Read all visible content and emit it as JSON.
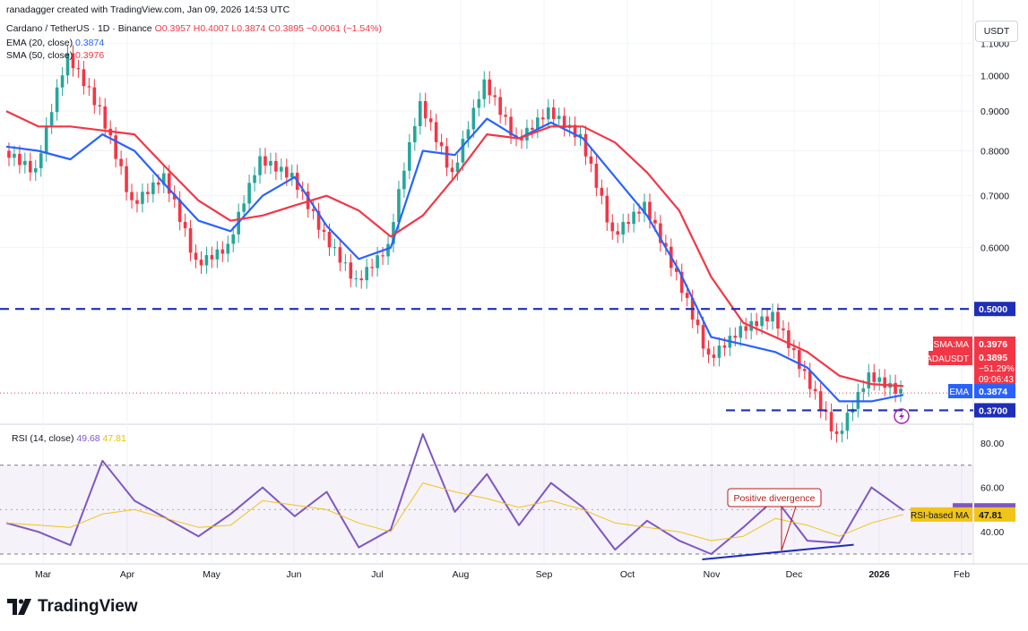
{
  "header": {
    "credit": "ranadagger created with TradingView.com, Jan 09, 2026 14:53 UTC",
    "symbol_line": "Cardano / TetherUS · 1D · Binance",
    "ohlc": "O0.3957 H0.4007 L0.3874 C0.3895 −0.0061 (−1.54%)",
    "ema_label": "EMA (20, close)",
    "ema_value": "0.3874",
    "sma_label": "SMA (50, close)",
    "sma_value": "0.3976"
  },
  "currency": "USDT",
  "rsi_legend": {
    "label": "RSI (14, close)",
    "value": "49.68",
    "ma_value": "47.81"
  },
  "brand": "TradingView",
  "colors": {
    "up": "#26a69a",
    "down": "#f23645",
    "ema": "#2962ff",
    "sma": "#f23645",
    "rsi": "#7e57c2",
    "rsi_ma": "#f0c419",
    "level_line": "#1e2eb8"
  },
  "chart_data": [
    {
      "type": "line",
      "title": "Cardano / TetherUS · 1D · Binance",
      "price_scale": "log",
      "ylim": [
        0.355,
        1.2
      ],
      "y_ticks": [
        1.1,
        1.0,
        0.9,
        0.8,
        0.7,
        0.6
      ],
      "y_tick_labels": [
        "1.1000",
        "1.0000",
        "0.9000",
        "0.8000",
        "0.7000",
        "0.6000"
      ],
      "x_ticks": [
        "Mar",
        "Apr",
        "May",
        "Jun",
        "Jul",
        "Aug",
        "Sep",
        "Oct",
        "Nov",
        "Dec",
        "2026",
        "Feb"
      ],
      "x": [
        "Feb 24",
        "Mar 2",
        "Mar 3",
        "Mar 6",
        "Mar 10",
        "Mar 26",
        "Apr 7",
        "Apr 21",
        "May 12",
        "Jun 1",
        "Jun 12",
        "Jun 22",
        "Jul 10",
        "Jul 20",
        "Aug 1",
        "Aug 14",
        "Sep 1",
        "Sep 20",
        "Oct 6",
        "Oct 10",
        "Oct 25",
        "Nov 4",
        "Nov 21",
        "Dec 3",
        "Dec 9",
        "Dec 17",
        "Dec 31",
        "Jan 5",
        "Jan 9"
      ],
      "series": [
        {
          "name": "ADAUSDT",
          "values": [
            0.8,
            0.75,
            1.06,
            0.9,
            0.68,
            0.74,
            0.57,
            0.6,
            0.78,
            0.74,
            0.62,
            0.54,
            0.6,
            0.92,
            0.74,
            0.98,
            0.82,
            0.9,
            0.83,
            0.62,
            0.68,
            0.55,
            0.43,
            0.47,
            0.49,
            0.41,
            0.34,
            0.41,
            0.3895
          ]
        },
        {
          "name": "EMA",
          "values": [
            0.81,
            0.8,
            0.78,
            0.84,
            0.8,
            0.72,
            0.65,
            0.63,
            0.7,
            0.74,
            0.64,
            0.58,
            0.6,
            0.8,
            0.79,
            0.88,
            0.83,
            0.87,
            0.83,
            0.74,
            0.66,
            0.56,
            0.46,
            0.45,
            0.44,
            0.42,
            0.38,
            0.38,
            0.3874
          ]
        },
        {
          "name": "SMA:MA",
          "values": [
            0.9,
            0.86,
            0.86,
            0.85,
            0.84,
            0.76,
            0.69,
            0.65,
            0.66,
            0.68,
            0.7,
            0.67,
            0.62,
            0.66,
            0.74,
            0.84,
            0.83,
            0.86,
            0.86,
            0.82,
            0.75,
            0.67,
            0.55,
            0.48,
            0.46,
            0.44,
            0.41,
            0.4,
            0.3976
          ]
        }
      ],
      "horizontal_levels": [
        {
          "value": 0.5,
          "label": "0.5000"
        },
        {
          "value": 0.37,
          "label": "0.3700"
        }
      ],
      "price_labels": [
        {
          "name": "SMA:MA",
          "value": "0.3976"
        },
        {
          "name": "ADAUSDT",
          "value": "0.3895",
          "change": "−51.29%",
          "countdown": "09:06:43"
        },
        {
          "name": "EMA",
          "value": "0.3874"
        }
      ]
    },
    {
      "type": "line",
      "title": "RSI (14, close)",
      "ylim": [
        28,
        86
      ],
      "y_ticks": [
        80,
        60,
        40
      ],
      "y_tick_labels": [
        "80.00",
        "60.00",
        "40.00"
      ],
      "band": [
        30,
        70
      ],
      "series": [
        {
          "name": "RSI",
          "values": [
            44,
            40,
            34,
            72,
            54,
            46,
            38,
            48,
            60,
            47,
            58,
            33,
            41,
            84,
            49,
            66,
            43,
            62,
            51,
            32,
            45,
            36,
            30,
            42,
            55,
            36,
            35,
            60,
            49.68
          ]
        },
        {
          "name": "RSI-based MA",
          "values": [
            44,
            43,
            42,
            48,
            50,
            46,
            42,
            43,
            54,
            52,
            50,
            44,
            40,
            62,
            58,
            55,
            51,
            54,
            50,
            44,
            42,
            40,
            36,
            38,
            46,
            43,
            38,
            44,
            47.81
          ]
        }
      ],
      "annotations": [
        {
          "text": "Positive divergence"
        }
      ]
    }
  ]
}
